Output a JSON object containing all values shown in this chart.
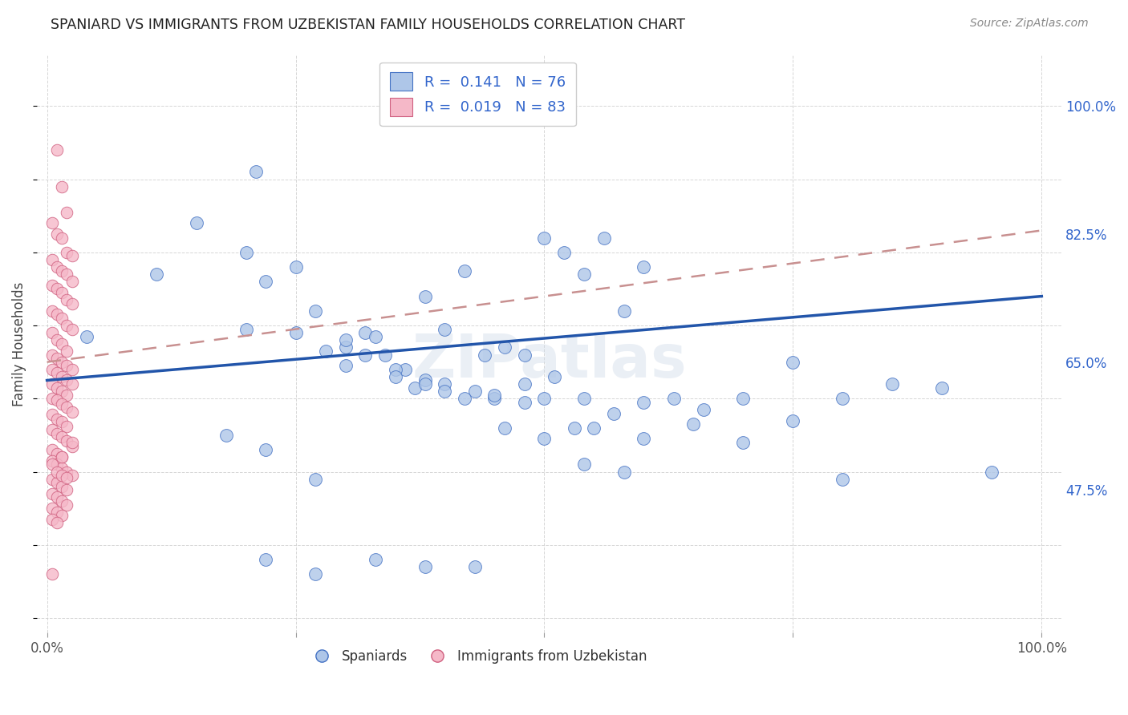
{
  "title": "SPANIARD VS IMMIGRANTS FROM UZBEKISTAN FAMILY HOUSEHOLDS CORRELATION CHART",
  "source": "Source: ZipAtlas.com",
  "ylabel": "Family Households",
  "ytick_labels": [
    "47.5%",
    "65.0%",
    "82.5%",
    "100.0%"
  ],
  "ytick_values": [
    0.475,
    0.65,
    0.825,
    1.0
  ],
  "legend_label1": "Spaniards",
  "legend_label2": "Immigrants from Uzbekistan",
  "r1": 0.141,
  "n1": 76,
  "r2": 0.019,
  "n2": 83,
  "color_blue": "#aec6e8",
  "color_pink": "#f5b8c8",
  "edge_blue": "#4472c4",
  "edge_pink": "#d06080",
  "line_blue": "#2255aa",
  "line_pink": "#c89090",
  "title_color": "#222222",
  "source_color": "#888888",
  "watermark": "ZIPatlas",
  "blue_scatter_x": [
    0.04,
    0.11,
    0.15,
    0.21,
    0.25,
    0.3,
    0.3,
    0.34,
    0.36,
    0.38,
    0.2,
    0.22,
    0.27,
    0.32,
    0.38,
    0.4,
    0.42,
    0.44,
    0.46,
    0.48,
    0.5,
    0.52,
    0.54,
    0.56,
    0.58,
    0.6,
    0.3,
    0.33,
    0.37,
    0.4,
    0.43,
    0.45,
    0.48,
    0.51,
    0.54,
    0.57,
    0.6,
    0.63,
    0.66,
    0.7,
    0.75,
    0.8,
    0.85,
    0.9,
    0.95,
    0.2,
    0.25,
    0.28,
    0.32,
    0.35,
    0.38,
    0.42,
    0.46,
    0.5,
    0.54,
    0.58,
    0.18,
    0.22,
    0.27,
    0.33,
    0.38,
    0.43,
    0.48,
    0.53,
    0.35,
    0.4,
    0.45,
    0.5,
    0.55,
    0.6,
    0.65,
    0.7,
    0.75,
    0.8,
    0.22,
    0.27
  ],
  "blue_scatter_y": [
    0.685,
    0.77,
    0.84,
    0.91,
    0.78,
    0.67,
    0.645,
    0.66,
    0.64,
    0.625,
    0.8,
    0.76,
    0.72,
    0.69,
    0.74,
    0.695,
    0.775,
    0.66,
    0.67,
    0.66,
    0.82,
    0.8,
    0.77,
    0.82,
    0.72,
    0.78,
    0.68,
    0.685,
    0.615,
    0.62,
    0.61,
    0.6,
    0.62,
    0.63,
    0.6,
    0.58,
    0.595,
    0.6,
    0.585,
    0.6,
    0.65,
    0.6,
    0.62,
    0.615,
    0.5,
    0.695,
    0.69,
    0.665,
    0.66,
    0.64,
    0.62,
    0.6,
    0.56,
    0.545,
    0.51,
    0.5,
    0.55,
    0.53,
    0.49,
    0.38,
    0.37,
    0.37,
    0.595,
    0.56,
    0.63,
    0.61,
    0.605,
    0.6,
    0.56,
    0.545,
    0.565,
    0.54,
    0.57,
    0.49,
    0.38,
    0.36
  ],
  "pink_scatter_x": [
    0.01,
    0.015,
    0.02,
    0.005,
    0.01,
    0.015,
    0.02,
    0.025,
    0.005,
    0.01,
    0.015,
    0.02,
    0.025,
    0.005,
    0.01,
    0.015,
    0.02,
    0.025,
    0.005,
    0.01,
    0.015,
    0.02,
    0.025,
    0.005,
    0.01,
    0.015,
    0.02,
    0.005,
    0.01,
    0.015,
    0.02,
    0.025,
    0.005,
    0.01,
    0.015,
    0.02,
    0.025,
    0.005,
    0.01,
    0.015,
    0.02,
    0.005,
    0.01,
    0.015,
    0.02,
    0.025,
    0.005,
    0.01,
    0.015,
    0.02,
    0.005,
    0.01,
    0.015,
    0.02,
    0.025,
    0.005,
    0.01,
    0.015,
    0.005,
    0.01,
    0.015,
    0.02,
    0.025,
    0.005,
    0.01,
    0.015,
    0.02,
    0.005,
    0.01,
    0.015,
    0.02,
    0.005,
    0.01,
    0.015,
    0.005,
    0.01,
    0.015,
    0.005,
    0.01,
    0.015,
    0.02,
    0.025,
    0.005
  ],
  "pink_scatter_y": [
    0.94,
    0.89,
    0.855,
    0.84,
    0.825,
    0.82,
    0.8,
    0.795,
    0.79,
    0.78,
    0.775,
    0.77,
    0.76,
    0.755,
    0.75,
    0.745,
    0.735,
    0.73,
    0.72,
    0.715,
    0.71,
    0.7,
    0.695,
    0.69,
    0.68,
    0.675,
    0.665,
    0.66,
    0.655,
    0.65,
    0.645,
    0.64,
    0.64,
    0.635,
    0.63,
    0.625,
    0.62,
    0.62,
    0.615,
    0.61,
    0.605,
    0.6,
    0.598,
    0.593,
    0.588,
    0.582,
    0.578,
    0.572,
    0.568,
    0.562,
    0.558,
    0.552,
    0.548,
    0.542,
    0.535,
    0.53,
    0.525,
    0.52,
    0.515,
    0.51,
    0.505,
    0.5,
    0.495,
    0.49,
    0.485,
    0.48,
    0.475,
    0.47,
    0.465,
    0.46,
    0.455,
    0.45,
    0.445,
    0.44,
    0.435,
    0.43,
    0.52,
    0.51,
    0.5,
    0.495,
    0.492,
    0.54,
    0.36
  ]
}
